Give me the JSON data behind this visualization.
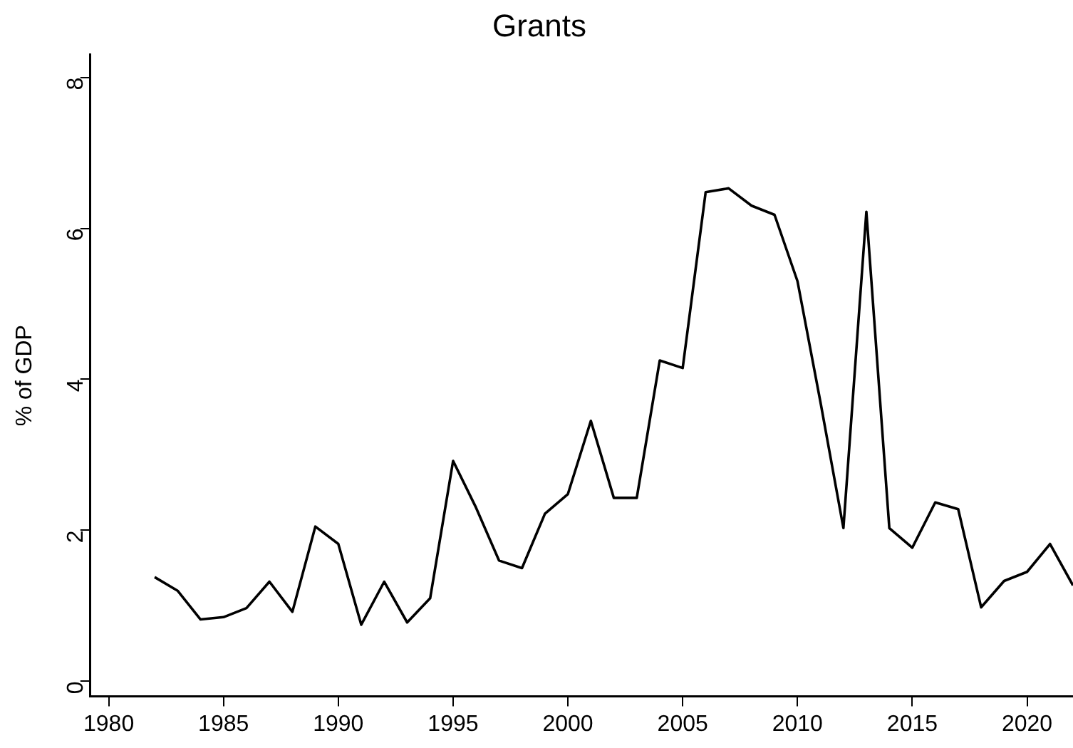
{
  "chart_data": {
    "type": "line",
    "title": "Grants",
    "ylabel": "% of GDP",
    "x": [
      1982,
      1983,
      1984,
      1985,
      1986,
      1987,
      1988,
      1989,
      1990,
      1991,
      1992,
      1993,
      1994,
      1995,
      1996,
      1997,
      1998,
      1999,
      2000,
      2001,
      2002,
      2003,
      2004,
      2005,
      2006,
      2007,
      2008,
      2009,
      2010,
      2011,
      2012,
      2013,
      2014,
      2015,
      2016,
      2017,
      2018,
      2019,
      2020,
      2021,
      2022
    ],
    "series": [
      {
        "color": "#000000",
        "values": [
          1.38,
          1.2,
          0.82,
          0.85,
          0.97,
          1.32,
          0.92,
          2.05,
          1.82,
          0.75,
          1.32,
          0.78,
          1.1,
          2.92,
          2.3,
          1.6,
          1.5,
          2.22,
          2.48,
          3.45,
          2.43,
          2.43,
          4.25,
          4.15,
          6.48,
          6.53,
          6.3,
          6.18,
          5.3,
          3.7,
          2.03,
          6.22,
          2.03,
          1.77,
          2.37,
          2.28,
          0.98,
          1.33,
          1.45,
          1.82,
          1.27
        ]
      }
    ],
    "xlim": [
      1979.2,
      2022
    ],
    "xticks": [
      1980,
      1985,
      1990,
      1995,
      2000,
      2005,
      2010,
      2015,
      2020
    ],
    "ylim": [
      -0.2,
      8.3
    ],
    "yticks": [
      0,
      2,
      4,
      6,
      8
    ],
    "grid": false,
    "legend": false,
    "marker": "none",
    "line_style": "solid"
  }
}
